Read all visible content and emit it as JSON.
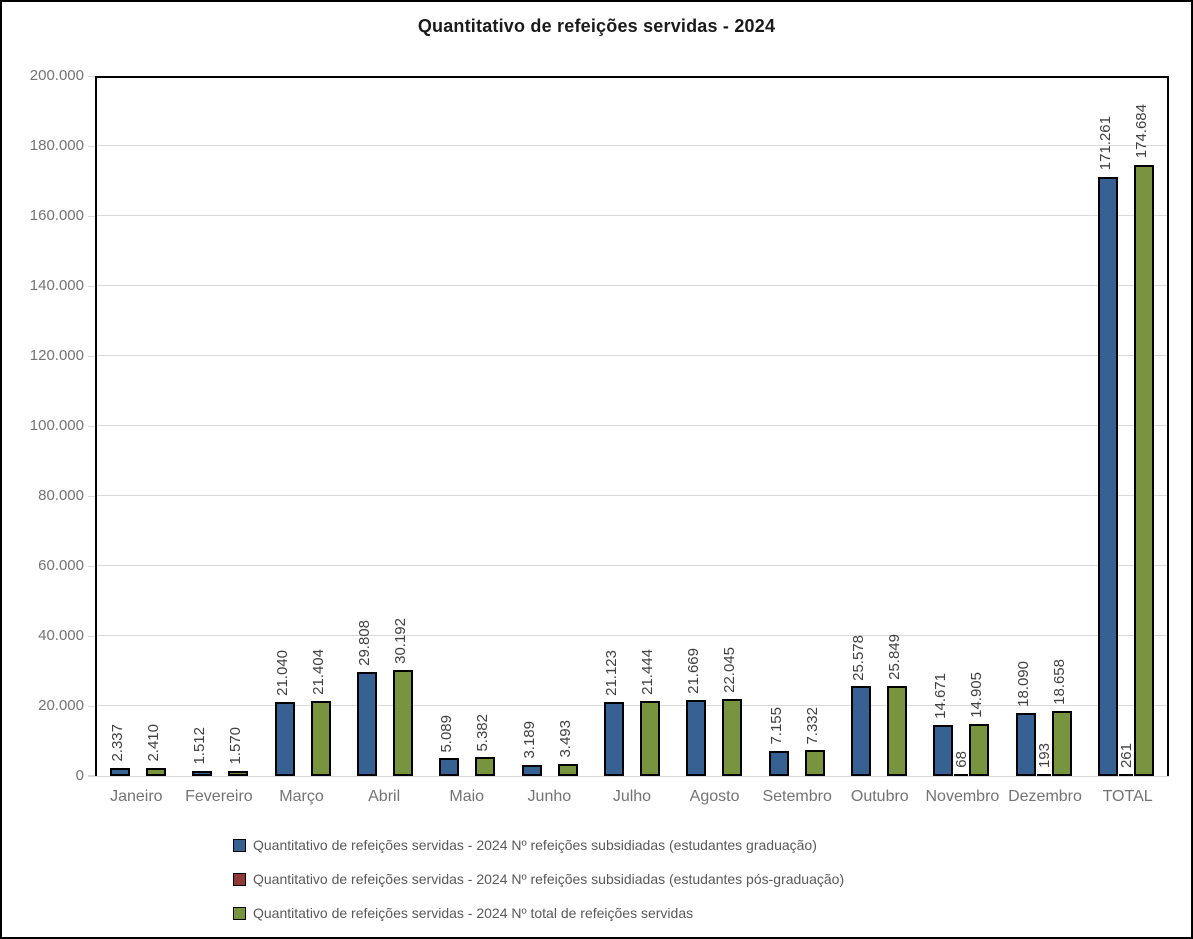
{
  "title": "Quantitativo de refeições servidas - 2024",
  "colors": {
    "graduacao_fill": "#366192",
    "pos_graduacao_fill": "#903A37",
    "total_fill": "#78943E",
    "bar_border": "#000000",
    "gridline": "#D9D9D9",
    "axis_text": "#737373",
    "data_label_text": "#404040",
    "legend_text": "#595959",
    "title_text": "#1A1A1A"
  },
  "chart_data": {
    "type": "bar",
    "title": "Quantitativo de refeições servidas - 2024",
    "xlabel": "",
    "ylabel": "",
    "ylim": [
      0,
      200000
    ],
    "y_tick_step": 20000,
    "y_tick_labels": [
      "0",
      "20.000",
      "40.000",
      "60.000",
      "80.000",
      "100.000",
      "120.000",
      "140.000",
      "160.000",
      "180.000",
      "200.000"
    ],
    "grid": true,
    "legend_position": "bottom-left",
    "data_labels": "rotated-90-above-bar",
    "categories": [
      "Janeiro",
      "Fevereiro",
      "Março",
      "Abril",
      "Maio",
      "Junho",
      "Julho",
      "Agosto",
      "Setembro",
      "Outubro",
      "Novembro",
      "Dezembro",
      "TOTAL"
    ],
    "series": [
      {
        "name": "Quantitativo de refeições servidas - 2024 Nº refeições subsidiadas (estudantes graduação)",
        "color": "#366192",
        "values": [
          2337,
          1512,
          21040,
          29808,
          5089,
          3189,
          21123,
          21669,
          7155,
          25578,
          14671,
          18090,
          171261
        ],
        "labels": [
          "2.337",
          "1.512",
          "21.040",
          "29.808",
          "5.089",
          "3.189",
          "21.123",
          "21.669",
          "7.155",
          "25.578",
          "14.671",
          "18.090",
          "171.261"
        ]
      },
      {
        "name": "Quantitativo de refeições servidas - 2024 Nº refeições subsidiadas (estudantes pós-graduação)",
        "color": "#903A37",
        "values": [
          null,
          null,
          null,
          null,
          null,
          null,
          null,
          null,
          null,
          null,
          68,
          193,
          261
        ],
        "labels": [
          null,
          null,
          null,
          null,
          null,
          null,
          null,
          null,
          null,
          null,
          "68",
          "193",
          "261"
        ]
      },
      {
        "name": "Quantitativo de refeições servidas - 2024 Nº total de refeições servidas",
        "color": "#78943E",
        "values": [
          2410,
          1570,
          21404,
          30192,
          5382,
          3493,
          21444,
          22045,
          7332,
          25849,
          14905,
          18658,
          174684
        ],
        "labels": [
          "2.410",
          "1.570",
          "21.404",
          "30.192",
          "5.382",
          "3.493",
          "21.444",
          "22.045",
          "7.332",
          "25.849",
          "14.905",
          "18.658",
          "174.684"
        ]
      }
    ]
  }
}
